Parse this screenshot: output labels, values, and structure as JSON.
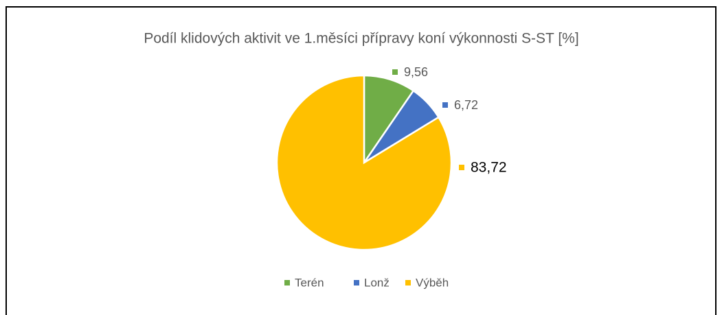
{
  "chart_data": {
    "type": "pie",
    "title": "Podíl klidových aktivit ve 1.měsíci přípravy koní výkonnosti S-ST [%]",
    "categories": [
      "Terén",
      "Lonž",
      "Výběh"
    ],
    "values": [
      9.56,
      6.72,
      83.72
    ],
    "value_labels": [
      "9,56",
      "6,72",
      "83,72"
    ],
    "colors": [
      "#70ad47",
      "#4472c4",
      "#ffc000"
    ],
    "legend": "bottom"
  }
}
